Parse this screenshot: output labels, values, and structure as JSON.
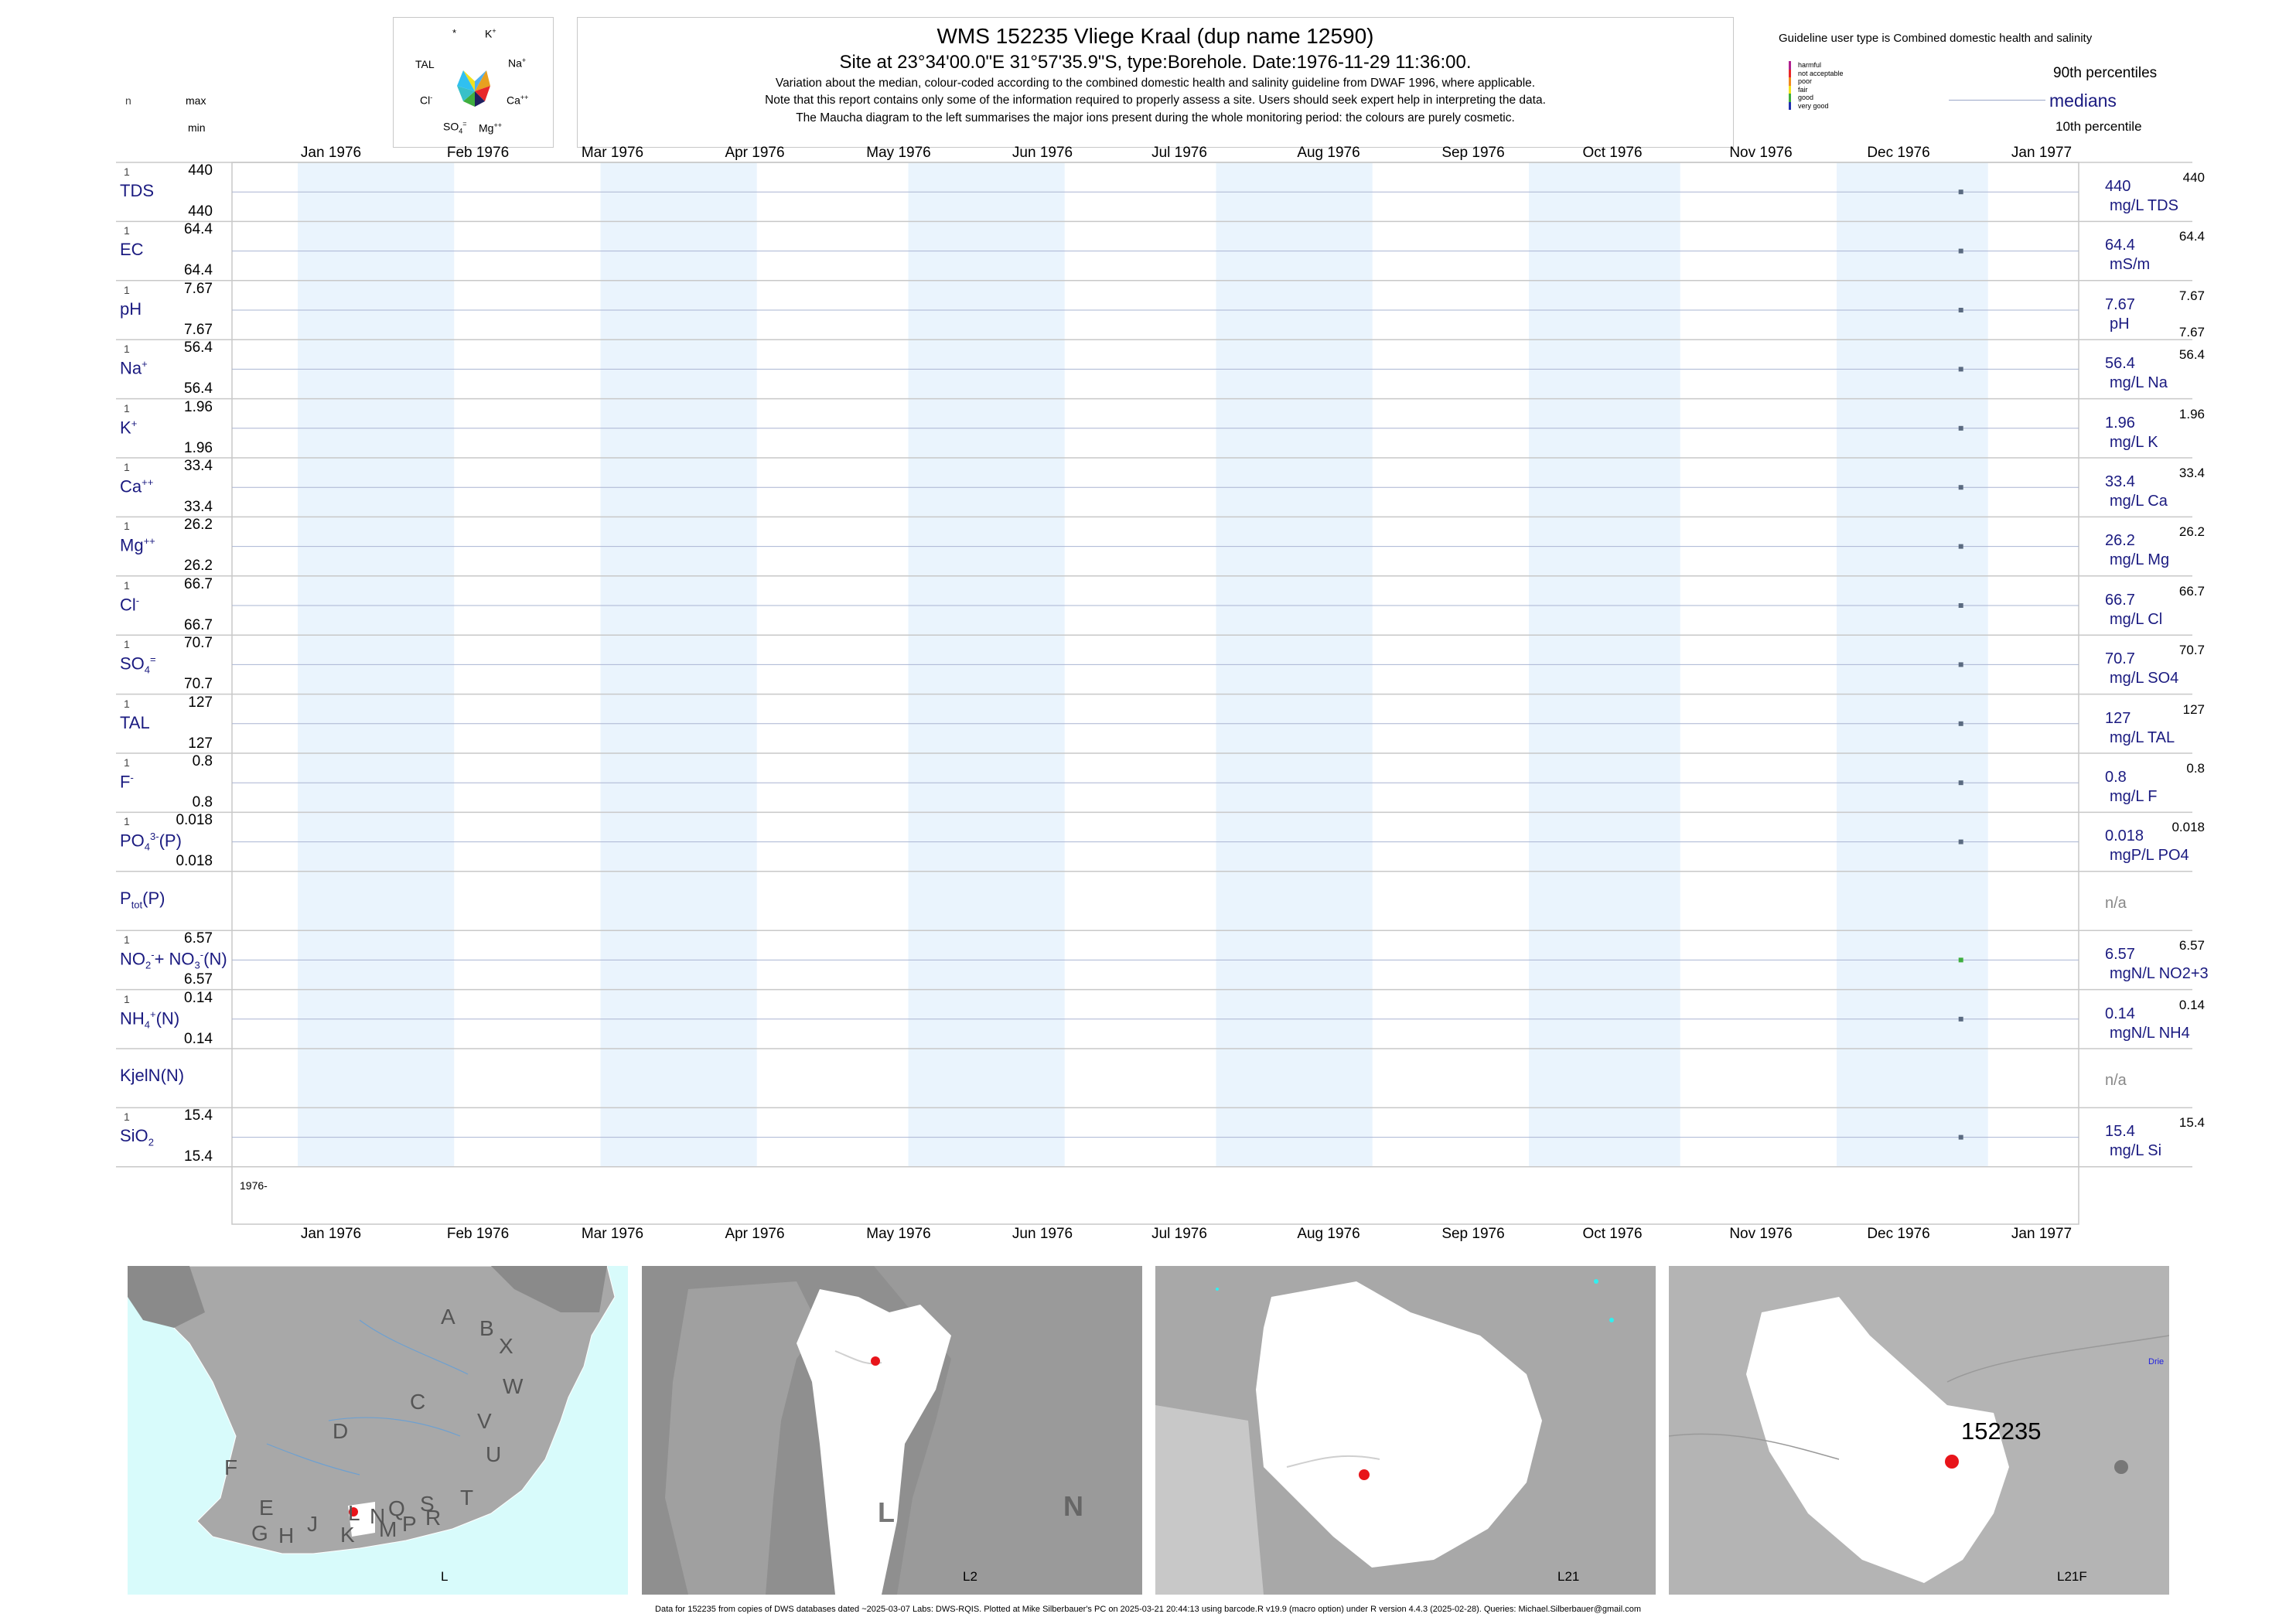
{
  "header": {
    "title": "WMS 152235  Vliege Kraal (dup name 12590)",
    "subtitle": "Site at 23°34'00.0\"E 31°57'35.9\"S, type:Borehole. Date:1976-11-29 11:36:00.",
    "note1": "Variation about the median,  colour-coded according to the combined domestic health and salinity guideline from DWAF 1996, where applicable.",
    "note2": "Note that this report contains only some of the information required to properly assess a site. Users should seek expert help in interpreting the data.",
    "note3": "The Maucha diagram to the left summarises the major ions present during the whole monitoring period: the colours are purely cosmetic."
  },
  "maucha": {
    "labels": [
      "*",
      "K",
      "TAL",
      "Na",
      "Cl",
      "Ca",
      "SO",
      "Mg"
    ]
  },
  "left_headers": {
    "n": "n",
    "max": "max",
    "min": "min"
  },
  "guideline": {
    "title": "Guideline user type is Combined domestic health and salinity",
    "classes": [
      {
        "label": "harmful",
        "color": "#b0208f"
      },
      {
        "label": "not acceptable",
        "color": "#e8262a"
      },
      {
        "label": "poor",
        "color": "#f28a1e"
      },
      {
        "label": "fair",
        "color": "#f2e21e"
      },
      {
        "label": "good",
        "color": "#3fae3f"
      },
      {
        "label": "very good",
        "color": "#2030b0"
      }
    ],
    "p90": "90th percentiles",
    "medians": "medians",
    "p10": "10th percentile"
  },
  "months": [
    "Jan 1976",
    "Feb 1976",
    "Mar 1976",
    "Apr 1976",
    "May 1976",
    "Jun 1976",
    "Jul 1976",
    "Aug 1976",
    "Sep 1976",
    "Oct 1976",
    "Nov 1976",
    "Dec 1976",
    "Jan 1977"
  ],
  "year_label": "1976-",
  "chart_data": {
    "type": "scatter",
    "x_axis": "date",
    "xlim": [
      "1976-01-01",
      "1977-01-01"
    ],
    "sample_date": "1976-11-29",
    "series": [
      {
        "name": "TDS",
        "n": 1,
        "max": "440",
        "min": "440",
        "median": "440",
        "unit": "mg/L TDS",
        "values": [
          {
            "x": "1976-11-29",
            "y": 440
          }
        ]
      },
      {
        "name": "EC",
        "n": 1,
        "max": "64.4",
        "min": "64.4",
        "median": "64.4",
        "unit": "mS/m",
        "values": [
          {
            "x": "1976-11-29",
            "y": 64.4
          }
        ]
      },
      {
        "name": "pH",
        "n": 1,
        "max": "7.67",
        "min": "7.67",
        "median": "7.67",
        "unit": "pH",
        "rmin": "7.67",
        "values": [
          {
            "x": "1976-11-29",
            "y": 7.67
          }
        ]
      },
      {
        "name": "Na",
        "n": 1,
        "max": "56.4",
        "min": "56.4",
        "median": "56.4",
        "unit": "mg/L Na",
        "values": [
          {
            "x": "1976-11-29",
            "y": 56.4
          }
        ]
      },
      {
        "name": "K",
        "n": 1,
        "max": "1.96",
        "min": "1.96",
        "median": "1.96",
        "unit": "mg/L K",
        "values": [
          {
            "x": "1976-11-29",
            "y": 1.96
          }
        ]
      },
      {
        "name": "Ca",
        "n": 1,
        "max": "33.4",
        "min": "33.4",
        "median": "33.4",
        "unit": "mg/L Ca",
        "values": [
          {
            "x": "1976-11-29",
            "y": 33.4
          }
        ]
      },
      {
        "name": "Mg",
        "n": 1,
        "max": "26.2",
        "min": "26.2",
        "median": "26.2",
        "unit": "mg/L Mg",
        "values": [
          {
            "x": "1976-11-29",
            "y": 26.2
          }
        ]
      },
      {
        "name": "Cl",
        "n": 1,
        "max": "66.7",
        "min": "66.7",
        "median": "66.7",
        "unit": "mg/L Cl",
        "values": [
          {
            "x": "1976-11-29",
            "y": 66.7
          }
        ]
      },
      {
        "name": "SO4",
        "n": 1,
        "max": "70.7",
        "min": "70.7",
        "median": "70.7",
        "unit": "mg/L SO4",
        "values": [
          {
            "x": "1976-11-29",
            "y": 70.7
          }
        ]
      },
      {
        "name": "TAL",
        "n": 1,
        "max": "127",
        "min": "127",
        "median": "127",
        "unit": "mg/L TAL",
        "values": [
          {
            "x": "1976-11-29",
            "y": 127
          }
        ]
      },
      {
        "name": "F",
        "n": 1,
        "max": "0.8",
        "min": "0.8",
        "median": "0.8",
        "unit": "mg/L F",
        "values": [
          {
            "x": "1976-11-29",
            "y": 0.8
          }
        ]
      },
      {
        "name": "PO4(P)",
        "n": 1,
        "max": "0.018",
        "min": "0.018",
        "median": "0.018",
        "unit": "mgP/L PO4",
        "values": [
          {
            "x": "1976-11-29",
            "y": 0.018
          }
        ]
      },
      {
        "name": "Ptot(P)",
        "n": 0,
        "max": "",
        "min": "",
        "median": "n/a",
        "unit": "",
        "values": []
      },
      {
        "name": "NO2+NO3(N)",
        "n": 1,
        "max": "6.57",
        "min": "6.57",
        "median": "6.57",
        "unit": "mgN/L NO2+3",
        "values": [
          {
            "x": "1976-11-29",
            "y": 6.57
          }
        ]
      },
      {
        "name": "NH4(N)",
        "n": 1,
        "max": "0.14",
        "min": "0.14",
        "median": "0.14",
        "unit": "mgN/L NH4",
        "values": [
          {
            "x": "1976-11-29",
            "y": 0.14
          }
        ]
      },
      {
        "name": "KjelN(N)",
        "n": 0,
        "max": "",
        "min": "",
        "median": "n/a",
        "unit": "",
        "values": []
      },
      {
        "name": "SiO2",
        "n": 1,
        "max": "15.4",
        "min": "15.4",
        "median": "15.4",
        "unit": "mg/L Si",
        "values": [
          {
            "x": "1976-11-29",
            "y": 15.4
          }
        ]
      }
    ]
  },
  "maps": [
    {
      "label": "L",
      "letters": [
        "A",
        "B",
        "X",
        "C",
        "W",
        "D",
        "V",
        "U",
        "F",
        "T",
        "E",
        "L",
        "N",
        "Q",
        "S",
        "G",
        "H",
        "J",
        "K",
        "M",
        "P",
        "R"
      ]
    },
    {
      "label": "L2",
      "letters": [
        "L",
        "N"
      ]
    },
    {
      "label": "L21"
    },
    {
      "label": "L21F",
      "site": "152235",
      "place": "Drie"
    }
  ],
  "footer": "Data for 152235 from copies of DWS databases dated ~2025-03-07 Labs: DWS-RQIS. Plotted at Mike Silberbauer's PC on 2025-03-21 20:44:13 using barcode.R v19.9 (macro option) under R version 4.4.3 (2025-02-28). Queries: Michael.Silberbauer@gmail.com"
}
